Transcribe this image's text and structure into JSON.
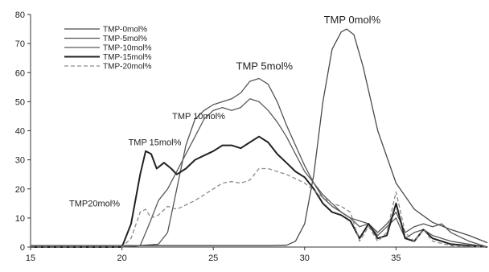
{
  "chart_data": {
    "type": "line",
    "title": "",
    "xlabel": "",
    "ylabel": "",
    "xlim": [
      15,
      40
    ],
    "ylim": [
      0,
      80
    ],
    "x_ticks": [
      15,
      20,
      25,
      30,
      35
    ],
    "y_ticks": [
      0,
      10,
      20,
      30,
      40,
      50,
      60,
      70,
      80
    ],
    "grid": false,
    "legend_position": "top-left",
    "series": [
      {
        "name": "TMP-0mol%",
        "color": "#4a4a4a",
        "dash": "solid",
        "points": [
          [
            15,
            0.5
          ],
          [
            28,
            0.5
          ],
          [
            29,
            0.6
          ],
          [
            29.5,
            2
          ],
          [
            30,
            8
          ],
          [
            30.5,
            25
          ],
          [
            31,
            50
          ],
          [
            31.5,
            68
          ],
          [
            32,
            74
          ],
          [
            32.3,
            75
          ],
          [
            32.7,
            73
          ],
          [
            33.2,
            62
          ],
          [
            34,
            40
          ],
          [
            35,
            22
          ],
          [
            36,
            13
          ],
          [
            37,
            8.5
          ],
          [
            38,
            6
          ],
          [
            39,
            4
          ],
          [
            40,
            1.5
          ]
        ]
      },
      {
        "name": "TMP-5mol%",
        "color": "#555555",
        "dash": "solid",
        "points": [
          [
            15,
            0
          ],
          [
            20,
            0
          ],
          [
            21,
            0.5
          ],
          [
            22,
            1
          ],
          [
            22.5,
            5
          ],
          [
            23,
            20
          ],
          [
            23.5,
            35
          ],
          [
            24,
            44
          ],
          [
            24.5,
            47
          ],
          [
            25,
            49
          ],
          [
            25.5,
            50
          ],
          [
            26,
            51
          ],
          [
            26.5,
            53
          ],
          [
            27,
            57
          ],
          [
            27.5,
            58
          ],
          [
            28,
            56
          ],
          [
            28.5,
            50
          ],
          [
            29,
            42
          ],
          [
            29.5,
            35
          ],
          [
            30,
            28
          ],
          [
            30.5,
            22
          ],
          [
            31,
            17
          ],
          [
            31.5,
            14
          ],
          [
            32,
            12
          ],
          [
            32.5,
            10
          ],
          [
            33,
            9
          ],
          [
            33.5,
            8
          ],
          [
            34,
            5
          ],
          [
            34.5,
            8
          ],
          [
            35,
            12
          ],
          [
            35.5,
            5
          ],
          [
            36,
            7
          ],
          [
            36.5,
            8
          ],
          [
            37,
            7
          ],
          [
            37.5,
            8
          ],
          [
            38,
            5
          ],
          [
            39,
            2
          ],
          [
            40,
            0
          ]
        ]
      },
      {
        "name": "TMP-10mol%",
        "color": "#5a5a5a",
        "dash": "solid",
        "points": [
          [
            15,
            0
          ],
          [
            20,
            0
          ],
          [
            21,
            0.5
          ],
          [
            21.5,
            8
          ],
          [
            22,
            16
          ],
          [
            22.5,
            20
          ],
          [
            23,
            26
          ],
          [
            23.5,
            32
          ],
          [
            24,
            38
          ],
          [
            24.5,
            44
          ],
          [
            25,
            47
          ],
          [
            25.5,
            48
          ],
          [
            26,
            47
          ],
          [
            26.5,
            48
          ],
          [
            27,
            51
          ],
          [
            27.5,
            50
          ],
          [
            28,
            47
          ],
          [
            28.5,
            43
          ],
          [
            29,
            38
          ],
          [
            29.5,
            32
          ],
          [
            30,
            26
          ],
          [
            30.5,
            22
          ],
          [
            31,
            18
          ],
          [
            31.5,
            15
          ],
          [
            32,
            12
          ],
          [
            32.5,
            10
          ],
          [
            33,
            7
          ],
          [
            33.5,
            8
          ],
          [
            34,
            4
          ],
          [
            34.5,
            7
          ],
          [
            35,
            10
          ],
          [
            35.5,
            3
          ],
          [
            36,
            5
          ],
          [
            36.5,
            6
          ],
          [
            37,
            4
          ],
          [
            38,
            2
          ],
          [
            39,
            1
          ],
          [
            40,
            0
          ]
        ]
      },
      {
        "name": "TMP-15mol%",
        "color": "#222222",
        "dash": "solid",
        "points": [
          [
            15,
            0
          ],
          [
            20,
            0
          ],
          [
            20.5,
            8
          ],
          [
            21,
            25
          ],
          [
            21.3,
            33
          ],
          [
            21.6,
            32
          ],
          [
            21.9,
            27
          ],
          [
            22.3,
            29
          ],
          [
            22.7,
            27
          ],
          [
            23,
            25
          ],
          [
            23.5,
            27
          ],
          [
            24,
            30
          ],
          [
            25,
            33
          ],
          [
            25.5,
            35
          ],
          [
            26,
            35
          ],
          [
            26.5,
            34
          ],
          [
            27,
            36
          ],
          [
            27.5,
            38
          ],
          [
            28,
            36
          ],
          [
            28.5,
            32
          ],
          [
            29,
            29
          ],
          [
            29.5,
            26
          ],
          [
            30,
            24
          ],
          [
            30.5,
            20
          ],
          [
            31,
            15
          ],
          [
            31.5,
            12
          ],
          [
            32,
            11
          ],
          [
            32.5,
            9
          ],
          [
            33,
            3
          ],
          [
            33.5,
            8
          ],
          [
            34,
            3
          ],
          [
            34.5,
            4
          ],
          [
            35,
            15
          ],
          [
            35.5,
            3
          ],
          [
            36,
            2
          ],
          [
            36.5,
            6
          ],
          [
            37,
            3
          ],
          [
            38,
            1
          ],
          [
            39,
            0.5
          ],
          [
            40,
            0
          ]
        ]
      },
      {
        "name": "TMP-20mol%",
        "color": "#8a8a8a",
        "dash": "dashed",
        "points": [
          [
            15,
            0
          ],
          [
            20,
            0
          ],
          [
            20.5,
            3
          ],
          [
            21,
            12
          ],
          [
            21.3,
            13
          ],
          [
            21.6,
            10
          ],
          [
            22,
            11
          ],
          [
            22.5,
            14
          ],
          [
            23,
            13
          ],
          [
            24,
            16
          ],
          [
            25,
            20
          ],
          [
            25.5,
            22
          ],
          [
            26,
            22.5
          ],
          [
            26.5,
            22
          ],
          [
            27,
            23
          ],
          [
            27.5,
            27
          ],
          [
            28,
            27
          ],
          [
            28.5,
            26
          ],
          [
            29,
            25
          ],
          [
            30,
            22
          ],
          [
            31,
            17
          ],
          [
            31.5,
            15
          ],
          [
            32,
            14
          ],
          [
            32.5,
            12
          ],
          [
            33,
            2
          ],
          [
            33.5,
            7
          ],
          [
            34,
            2
          ],
          [
            34.5,
            5
          ],
          [
            35,
            19
          ],
          [
            35.5,
            5
          ],
          [
            36,
            2
          ],
          [
            36.5,
            6
          ],
          [
            37,
            2
          ],
          [
            38,
            0.5
          ],
          [
            40,
            0
          ]
        ]
      }
    ],
    "annotations": [
      {
        "text": "TMP 0mol%",
        "x": 32.6,
        "y": 77,
        "size": "large"
      },
      {
        "text": "TMP 5mol%",
        "x": 27.8,
        "y": 61,
        "size": "large"
      },
      {
        "text": "TMP 10mol%",
        "x": 24.2,
        "y": 44,
        "size": "normal"
      },
      {
        "text": "TMP 15mol%",
        "x": 21.8,
        "y": 35,
        "size": "normal"
      },
      {
        "text": "TMP20mol%",
        "x": 18.5,
        "y": 14,
        "size": "normal"
      }
    ]
  }
}
